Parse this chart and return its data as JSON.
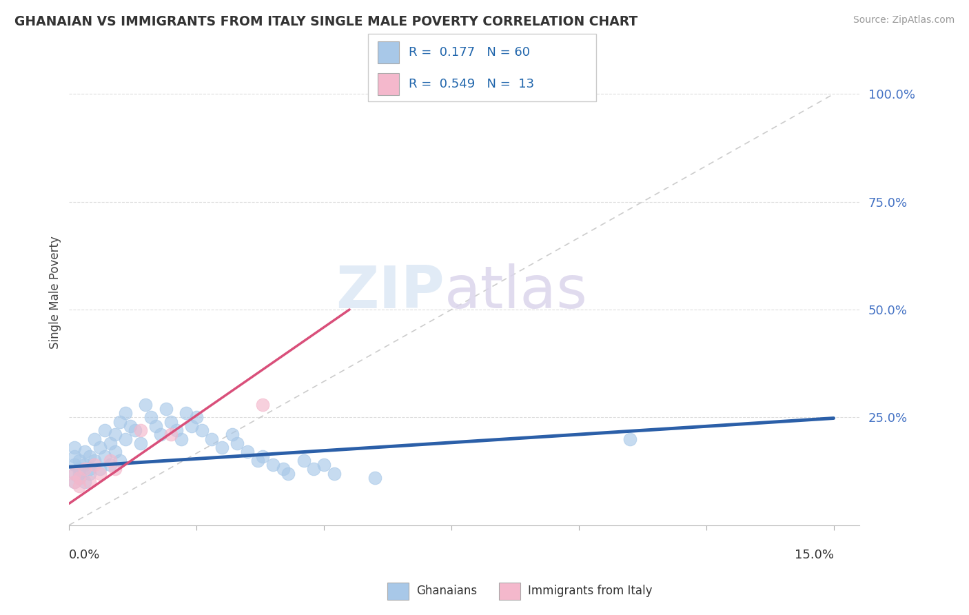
{
  "title": "GHANAIAN VS IMMIGRANTS FROM ITALY SINGLE MALE POVERTY CORRELATION CHART",
  "source": "Source: ZipAtlas.com",
  "ylabel": "Single Male Poverty",
  "ytick_labels": [
    "100.0%",
    "75.0%",
    "50.0%",
    "25.0%"
  ],
  "ytick_positions": [
    1.0,
    0.75,
    0.5,
    0.25
  ],
  "xlim": [
    0.0,
    0.15
  ],
  "ylim": [
    0.0,
    1.05
  ],
  "blue_color": "#a8c8e8",
  "pink_color": "#f4b8cc",
  "blue_line_color": "#2b5fa8",
  "pink_line_color": "#d94f7a",
  "diagonal_color": "#cccccc",
  "blue_line_y0": 0.135,
  "blue_line_y1": 0.248,
  "pink_line_x0": 0.0,
  "pink_line_y0": 0.05,
  "pink_line_x1": 0.055,
  "pink_line_y1": 0.5,
  "ghanaians_x": [
    0.001,
    0.001,
    0.001,
    0.001,
    0.001,
    0.002,
    0.002,
    0.002,
    0.002,
    0.003,
    0.003,
    0.003,
    0.004,
    0.004,
    0.004,
    0.005,
    0.005,
    0.006,
    0.006,
    0.007,
    0.007,
    0.008,
    0.008,
    0.009,
    0.009,
    0.01,
    0.01,
    0.011,
    0.011,
    0.012,
    0.013,
    0.014,
    0.015,
    0.016,
    0.017,
    0.018,
    0.019,
    0.02,
    0.021,
    0.022,
    0.023,
    0.024,
    0.025,
    0.026,
    0.028,
    0.03,
    0.032,
    0.033,
    0.035,
    0.037,
    0.038,
    0.04,
    0.042,
    0.043,
    0.046,
    0.048,
    0.05,
    0.052,
    0.06,
    0.11
  ],
  "ghanaians_y": [
    0.12,
    0.14,
    0.16,
    0.18,
    0.1,
    0.13,
    0.15,
    0.12,
    0.11,
    0.17,
    0.14,
    0.1,
    0.13,
    0.16,
    0.12,
    0.2,
    0.15,
    0.18,
    0.13,
    0.22,
    0.16,
    0.19,
    0.14,
    0.21,
    0.17,
    0.24,
    0.15,
    0.26,
    0.2,
    0.23,
    0.22,
    0.19,
    0.28,
    0.25,
    0.23,
    0.21,
    0.27,
    0.24,
    0.22,
    0.2,
    0.26,
    0.23,
    0.25,
    0.22,
    0.2,
    0.18,
    0.21,
    0.19,
    0.17,
    0.15,
    0.16,
    0.14,
    0.13,
    0.12,
    0.15,
    0.13,
    0.14,
    0.12,
    0.11,
    0.2
  ],
  "italy_x": [
    0.001,
    0.001,
    0.002,
    0.002,
    0.003,
    0.004,
    0.005,
    0.006,
    0.008,
    0.009,
    0.014,
    0.02,
    0.038
  ],
  "italy_y": [
    0.1,
    0.12,
    0.09,
    0.11,
    0.13,
    0.1,
    0.14,
    0.12,
    0.15,
    0.13,
    0.22,
    0.21,
    0.28
  ]
}
